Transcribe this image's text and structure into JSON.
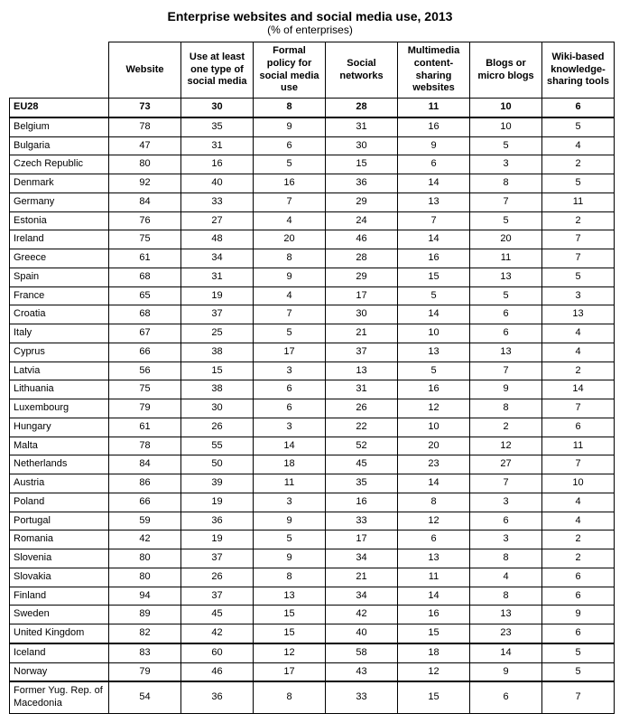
{
  "title": "Enterprise websites and social media use, 2013",
  "subtitle": "(% of enterprises)",
  "table": {
    "columns": [
      "Website",
      "Use at least one type of social media",
      "Formal policy for social media use",
      "Social networks",
      "Multimedia content-sharing websites",
      "Blogs or micro blogs",
      "Wiki-based knowledge-sharing tools"
    ],
    "header_fontsize": 11,
    "cell_fontsize": 11,
    "border_color": "#000000",
    "background_color": "#ffffff",
    "text_color": "#000000",
    "col_widths": {
      "label": 110,
      "data": 80
    },
    "rows": [
      {
        "label": "EU28",
        "bold": true,
        "sep_bottom": true,
        "vals": [
          73,
          30,
          8,
          28,
          11,
          10,
          6
        ]
      },
      {
        "label": "Belgium",
        "vals": [
          78,
          35,
          9,
          31,
          16,
          10,
          5
        ]
      },
      {
        "label": "Bulgaria",
        "vals": [
          47,
          31,
          6,
          30,
          9,
          5,
          4
        ]
      },
      {
        "label": "Czech Republic",
        "vals": [
          80,
          16,
          5,
          15,
          6,
          3,
          2
        ]
      },
      {
        "label": "Denmark",
        "vals": [
          92,
          40,
          16,
          36,
          14,
          8,
          5
        ]
      },
      {
        "label": "Germany",
        "vals": [
          84,
          33,
          7,
          29,
          13,
          7,
          11
        ]
      },
      {
        "label": "Estonia",
        "vals": [
          76,
          27,
          4,
          24,
          7,
          5,
          2
        ]
      },
      {
        "label": "Ireland",
        "vals": [
          75,
          48,
          20,
          46,
          14,
          20,
          7
        ]
      },
      {
        "label": "Greece",
        "vals": [
          61,
          34,
          8,
          28,
          16,
          11,
          7
        ]
      },
      {
        "label": "Spain",
        "vals": [
          68,
          31,
          9,
          29,
          15,
          13,
          5
        ]
      },
      {
        "label": "France",
        "vals": [
          65,
          19,
          4,
          17,
          5,
          5,
          3
        ]
      },
      {
        "label": "Croatia",
        "vals": [
          68,
          37,
          7,
          30,
          14,
          6,
          13
        ]
      },
      {
        "label": "Italy",
        "vals": [
          67,
          25,
          5,
          21,
          10,
          6,
          4
        ]
      },
      {
        "label": "Cyprus",
        "vals": [
          66,
          38,
          17,
          37,
          13,
          13,
          4
        ]
      },
      {
        "label": "Latvia",
        "vals": [
          56,
          15,
          3,
          13,
          5,
          7,
          2
        ]
      },
      {
        "label": "Lithuania",
        "vals": [
          75,
          38,
          6,
          31,
          16,
          9,
          14
        ]
      },
      {
        "label": "Luxembourg",
        "vals": [
          79,
          30,
          6,
          26,
          12,
          8,
          7
        ]
      },
      {
        "label": "Hungary",
        "vals": [
          61,
          26,
          3,
          22,
          10,
          2,
          6
        ]
      },
      {
        "label": "Malta",
        "vals": [
          78,
          55,
          14,
          52,
          20,
          12,
          11
        ]
      },
      {
        "label": "Netherlands",
        "vals": [
          84,
          50,
          18,
          45,
          23,
          27,
          7
        ]
      },
      {
        "label": "Austria",
        "vals": [
          86,
          39,
          11,
          35,
          14,
          7,
          10
        ]
      },
      {
        "label": "Poland",
        "vals": [
          66,
          19,
          3,
          16,
          8,
          3,
          4
        ]
      },
      {
        "label": "Portugal",
        "vals": [
          59,
          36,
          9,
          33,
          12,
          6,
          4
        ]
      },
      {
        "label": "Romania",
        "vals": [
          42,
          19,
          5,
          17,
          6,
          3,
          2
        ]
      },
      {
        "label": "Slovenia",
        "vals": [
          80,
          37,
          9,
          34,
          13,
          8,
          2
        ]
      },
      {
        "label": "Slovakia",
        "vals": [
          80,
          26,
          8,
          21,
          11,
          4,
          6
        ]
      },
      {
        "label": "Finland",
        "vals": [
          94,
          37,
          13,
          34,
          14,
          8,
          6
        ]
      },
      {
        "label": "Sweden",
        "vals": [
          89,
          45,
          15,
          42,
          16,
          13,
          9
        ]
      },
      {
        "label": "United Kingdom",
        "sep_bottom": true,
        "vals": [
          82,
          42,
          15,
          40,
          15,
          23,
          6
        ]
      },
      {
        "label": "Iceland",
        "vals": [
          83,
          60,
          12,
          58,
          18,
          14,
          5
        ]
      },
      {
        "label": "Norway",
        "sep_bottom": true,
        "vals": [
          79,
          46,
          17,
          43,
          12,
          9,
          5
        ]
      },
      {
        "label": "Former Yug. Rep. of Macedonia",
        "vals": [
          54,
          36,
          8,
          33,
          15,
          6,
          7
        ]
      }
    ]
  }
}
